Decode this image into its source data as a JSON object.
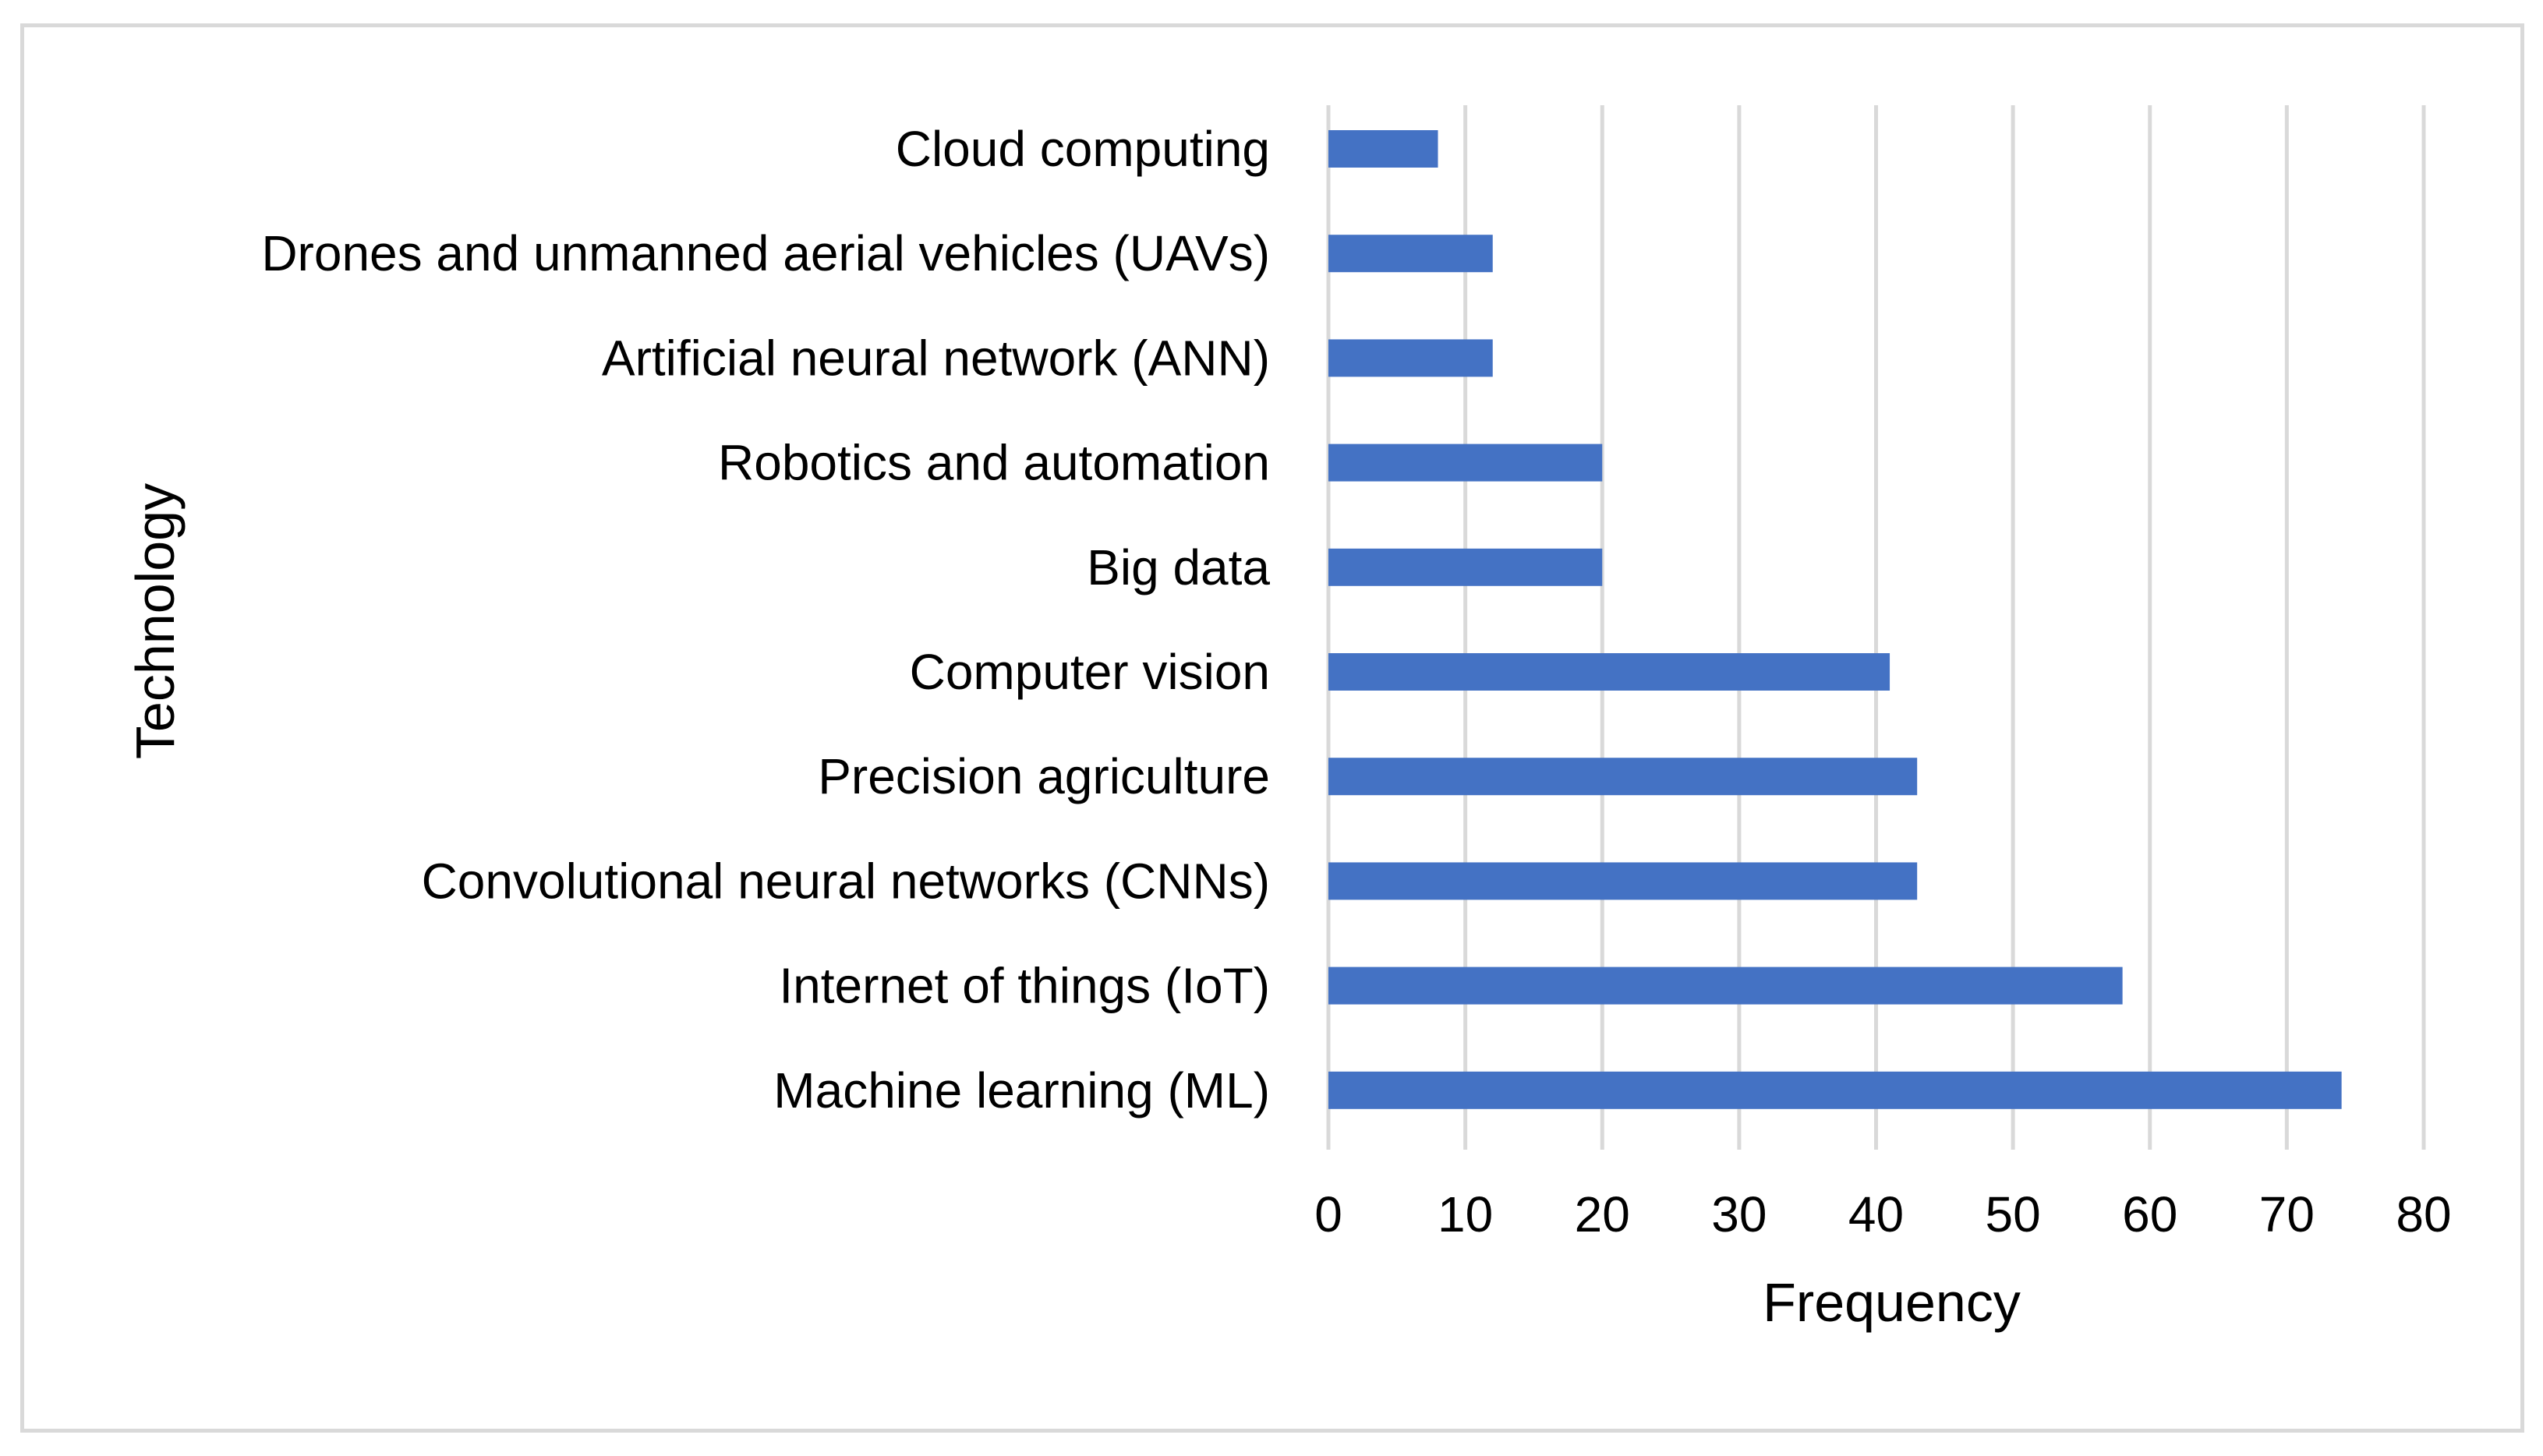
{
  "colors": {
    "bar": "#4472C4",
    "grid": "#D9D9D9",
    "frame": "#D9D9D9",
    "text": "#000000"
  },
  "chart_data": {
    "type": "bar",
    "orientation": "horizontal",
    "title": "",
    "xlabel": "Frequency",
    "ylabel": "Technology",
    "xlim": [
      0,
      80
    ],
    "xticks": [
      0,
      10,
      20,
      30,
      40,
      50,
      60,
      70,
      80
    ],
    "grid": true,
    "legend": "none",
    "categories": [
      "Cloud computing",
      "Drones and unmanned aerial vehicles (UAVs)",
      "Artificial neural network (ANN)",
      "Robotics and automation",
      "Big data",
      "Computer vision",
      "Precision agriculture",
      "Convolutional neural networks (CNNs)",
      "Internet of things (IoT)",
      "Machine learning (ML)"
    ],
    "values": [
      8,
      12,
      12,
      20,
      20,
      41,
      43,
      43,
      58,
      74
    ]
  }
}
